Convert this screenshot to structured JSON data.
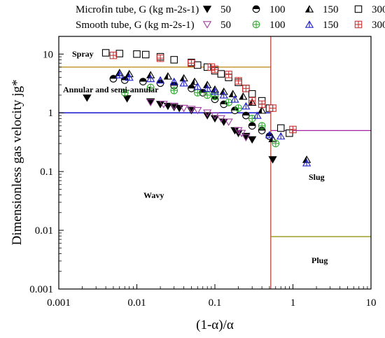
{
  "chart_data": {
    "type": "scatter",
    "xlabel": "(1-α)/α",
    "ylabel": "Dimensionless gas velocity jg*",
    "xscale": "log",
    "yscale": "log",
    "xlim": [
      0.001,
      10
    ],
    "ylim": [
      0.001,
      20
    ],
    "x_ticks": [
      "0.001",
      "0.01",
      "0.1",
      "1",
      "10"
    ],
    "y_ticks": [
      "0.001",
      "0.01",
      "0.1",
      "1",
      "10"
    ],
    "legend": {
      "placement": "top",
      "rows": [
        {
          "label": "Microfin tube, G (kg m-2s-1)",
          "entries": [
            "50",
            "100",
            "150",
            "300"
          ]
        },
        {
          "label": "Smooth tube, G (kg m-2s-1)",
          "entries": [
            "50",
            "100",
            "150",
            "300"
          ]
        }
      ]
    },
    "regions": [
      "Spray",
      "Annular and semi-annular",
      "Wavy",
      "Slug",
      "Plug"
    ],
    "boundaries": [
      {
        "color": "#b8860b",
        "x": [
          0.001,
          0.52
        ],
        "y": [
          6,
          6
        ]
      },
      {
        "color": "#0000cc",
        "x": [
          0.001,
          0.52
        ],
        "y": [
          1,
          1
        ]
      },
      {
        "color": "#b5483c",
        "x": [
          0.52,
          0.52
        ],
        "y": [
          0.001,
          20
        ]
      },
      {
        "color": "#a020a0",
        "x": [
          0.52,
          10
        ],
        "y": [
          0.5,
          0.5
        ]
      },
      {
        "color": "#8b8b00",
        "x": [
          0.52,
          10
        ],
        "y": [
          0.0078,
          0.0078
        ]
      }
    ],
    "series": [
      {
        "name": "Microfin 50",
        "marker": "triangle-down",
        "color": "#000000",
        "x": [
          0.0023,
          0.0075,
          0.015,
          0.02,
          0.025,
          0.03,
          0.035,
          0.05,
          0.08,
          0.1,
          0.13,
          0.18,
          0.2,
          0.25,
          0.3,
          0.55
        ],
        "y": [
          1.8,
          1.75,
          1.55,
          1.4,
          1.3,
          1.25,
          1.2,
          1.1,
          0.9,
          0.8,
          0.7,
          0.5,
          0.45,
          0.4,
          0.35,
          0.16
        ]
      },
      {
        "name": "Microfin 100",
        "marker": "half-circle",
        "color": "#000000",
        "x": [
          0.005,
          0.007,
          0.012,
          0.02,
          0.03,
          0.05,
          0.07,
          0.1,
          0.13,
          0.18,
          0.25,
          0.3,
          0.4,
          0.5
        ],
        "y": [
          3.8,
          3.6,
          3.4,
          3.2,
          2.9,
          2.6,
          2.2,
          1.7,
          1.4,
          1.1,
          0.9,
          0.6,
          0.5,
          0.4
        ]
      },
      {
        "name": "Microfin 150",
        "marker": "triangle-up",
        "color": "#000000",
        "x": [
          0.006,
          0.008,
          0.015,
          0.025,
          0.04,
          0.055,
          0.08,
          0.1,
          0.13,
          0.17,
          0.23,
          0.3,
          0.4,
          0.55,
          1.5
        ],
        "y": [
          4.8,
          4.6,
          4.4,
          4.2,
          3.9,
          3.4,
          3.0,
          2.5,
          2.3,
          2.1,
          1.9,
          1.5,
          1.1,
          0.36,
          0.16
        ]
      },
      {
        "name": "Microfin 300",
        "marker": "square-open",
        "color": "#000000",
        "x": [
          0.004,
          0.006,
          0.01,
          0.013,
          0.02,
          0.03,
          0.05,
          0.06,
          0.08,
          0.1,
          0.12,
          0.15,
          0.2,
          0.25,
          0.3,
          0.4,
          0.5,
          0.7,
          0.9
        ],
        "y": [
          10.5,
          10.2,
          10,
          9.8,
          9.0,
          8.0,
          7.2,
          6.5,
          6.0,
          5.2,
          4.6,
          4.0,
          3.3,
          2.6,
          2.1,
          1.6,
          1.2,
          0.55,
          0.45
        ]
      },
      {
        "name": "Smooth 50",
        "marker": "triangle-down-open",
        "color": "#a040a0",
        "x": [
          0.015,
          0.022,
          0.03,
          0.04,
          0.05,
          0.06,
          0.08,
          0.1,
          0.12,
          0.15,
          0.2,
          0.22,
          0.25
        ],
        "y": [
          1.5,
          1.4,
          1.3,
          1.2,
          1.15,
          1.1,
          1.0,
          0.9,
          0.8,
          0.7,
          0.5,
          0.45,
          0.38
        ]
      },
      {
        "name": "Smooth 100",
        "marker": "circle-plus",
        "color": "#33aa33",
        "x": [
          0.007,
          0.015,
          0.03,
          0.06,
          0.08,
          0.1,
          0.15,
          0.2,
          0.3,
          0.4,
          0.6
        ],
        "y": [
          2.2,
          2.7,
          2.4,
          2.2,
          2.0,
          1.9,
          1.5,
          1.2,
          0.8,
          0.6,
          0.3
        ]
      },
      {
        "name": "Smooth 150",
        "marker": "triangle-up-open",
        "color": "#2020cc",
        "x": [
          0.006,
          0.008,
          0.015,
          0.02,
          0.03,
          0.04,
          0.06,
          0.08,
          0.1,
          0.13,
          0.18,
          0.25,
          0.35,
          0.5,
          0.7,
          1.5
        ],
        "y": [
          4.4,
          4.0,
          3.8,
          3.6,
          3.4,
          3.2,
          2.8,
          2.6,
          2.3,
          2.0,
          1.7,
          1.3,
          0.9,
          0.42,
          0.4,
          0.14
        ]
      },
      {
        "name": "Smooth 300",
        "marker": "square-plus",
        "color": "#cc3333",
        "x": [
          0.005,
          0.02,
          0.05,
          0.09,
          0.1,
          0.15,
          0.2,
          0.25,
          0.3,
          0.4,
          0.55,
          1.0
        ],
        "y": [
          9.5,
          8.5,
          7.0,
          6.0,
          5.5,
          4.5,
          3.5,
          2.6,
          1.6,
          1.4,
          1.2,
          0.52
        ]
      }
    ]
  }
}
